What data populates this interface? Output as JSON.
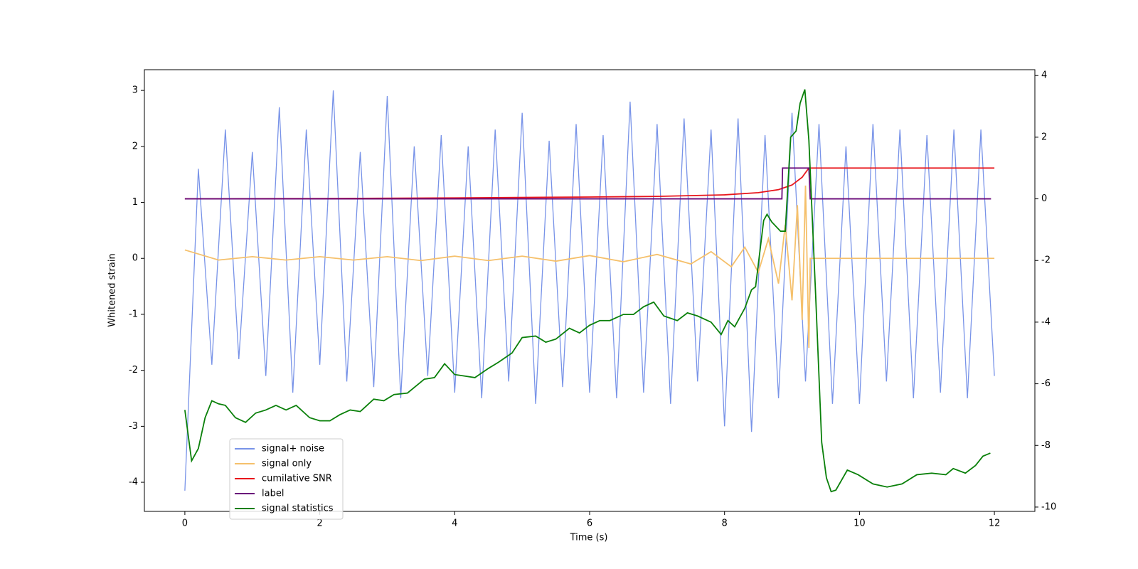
{
  "chart_data": {
    "type": "line",
    "xlabel": "Time (s)",
    "ylabel": "Whitened strain",
    "xlim": [
      -0.6,
      12.6
    ],
    "xticks": [
      0,
      2,
      4,
      6,
      8,
      10,
      12
    ],
    "ylim": [
      -4.52,
      3.37
    ],
    "yticks": [
      -4,
      -3,
      -2,
      -1,
      0,
      1,
      2,
      3
    ],
    "y2lim": [
      -10.14,
      4.19
    ],
    "y2ticks": [
      -10,
      -8,
      -6,
      -4,
      -2,
      0,
      2,
      4
    ],
    "legend": "lower left",
    "series": [
      {
        "name": "signal+ noise",
        "color": "#7893e8",
        "x": [
          0,
          0.2,
          0.4,
          0.6,
          0.8,
          1,
          1.2,
          1.4,
          1.6,
          1.8,
          2,
          2.2,
          2.4,
          2.6,
          2.8,
          3,
          3.2,
          3.4,
          3.6,
          3.8,
          4,
          4.2,
          4.4,
          4.6,
          4.8,
          5,
          5.2,
          5.4,
          5.6,
          5.8,
          6,
          6.2,
          6.4,
          6.6,
          6.8,
          7,
          7.2,
          7.4,
          7.6,
          7.8,
          8,
          8.2,
          8.4,
          8.6,
          8.8,
          9,
          9.2,
          9.4,
          9.6,
          9.8,
          10,
          10.2,
          10.4,
          10.6,
          10.8,
          11,
          11.2,
          11.4,
          11.6,
          11.8,
          12
        ],
        "values": [
          -4.15,
          1.6,
          -1.9,
          2.3,
          -1.8,
          1.9,
          -2.1,
          2.7,
          -2.4,
          2.3,
          -1.9,
          3.0,
          -2.2,
          1.9,
          -2.3,
          2.9,
          -2.5,
          2.0,
          -2.1,
          2.2,
          -2.4,
          2.0,
          -2.5,
          2.3,
          -2.2,
          2.6,
          -2.6,
          2.1,
          -2.3,
          2.4,
          -2.4,
          2.2,
          -2.5,
          2.8,
          -2.4,
          2.4,
          -2.6,
          2.5,
          -2.2,
          2.3,
          -3.0,
          2.5,
          -3.1,
          2.2,
          -2.5,
          2.6,
          -2.2,
          2.4,
          -2.6,
          2.0,
          -2.6,
          2.4,
          -2.2,
          2.3,
          -2.5,
          2.2,
          -2.4,
          2.3,
          -2.5,
          2.3,
          -2.1
        ]
      },
      {
        "name": "signal only",
        "color": "#f5c06b",
        "x": [
          0,
          0.5,
          1,
          1.5,
          2,
          2.5,
          3,
          3.5,
          4,
          4.5,
          5,
          5.5,
          6,
          6.5,
          7,
          7.5,
          7.8,
          8.1,
          8.3,
          8.5,
          8.65,
          8.8,
          8.9,
          9.0,
          9.08,
          9.15,
          9.2,
          9.25,
          9.27,
          12
        ],
        "values": [
          0.15,
          -0.03,
          0.03,
          -0.03,
          0.03,
          -0.03,
          0.03,
          -0.04,
          0.04,
          -0.04,
          0.04,
          -0.05,
          0.05,
          -0.06,
          0.07,
          -0.1,
          0.12,
          -0.15,
          0.2,
          -0.25,
          0.35,
          -0.45,
          0.6,
          -0.75,
          0.95,
          -1.1,
          1.3,
          -1.6,
          0,
          0
        ]
      },
      {
        "name": "cumilative SNR",
        "color": "#e8161c",
        "axis": "y2",
        "x": [
          0,
          2,
          4,
          6,
          7,
          8,
          8.5,
          8.8,
          9.0,
          9.15,
          9.25,
          12
        ],
        "values": [
          0,
          0.01,
          0.03,
          0.06,
          0.08,
          0.13,
          0.2,
          0.3,
          0.45,
          0.7,
          1,
          1
        ]
      },
      {
        "name": "label",
        "color": "#6a0a7a",
        "axis": "y2",
        "x": [
          0,
          8.85,
          8.86,
          9.25,
          9.27,
          11.95
        ],
        "values": [
          0,
          0,
          1,
          1,
          0,
          0
        ]
      },
      {
        "name": "signal statistics",
        "color": "#0a800a",
        "axis": "y2",
        "x": [
          0,
          0.1,
          0.2,
          0.3,
          0.4,
          0.5,
          0.6,
          0.75,
          0.9,
          1.05,
          1.2,
          1.35,
          1.5,
          1.65,
          1.85,
          2.0,
          2.15,
          2.3,
          2.45,
          2.6,
          2.8,
          2.95,
          3.1,
          3.3,
          3.55,
          3.7,
          3.85,
          4.0,
          4.15,
          4.3,
          4.5,
          4.65,
          4.85,
          5.0,
          5.2,
          5.35,
          5.5,
          5.7,
          5.85,
          6.0,
          6.15,
          6.3,
          6.5,
          6.65,
          6.8,
          6.95,
          7.1,
          7.3,
          7.45,
          7.6,
          7.8,
          7.95,
          8.05,
          8.15,
          8.3,
          8.4,
          8.46,
          8.58,
          8.63,
          8.7,
          8.83,
          8.9,
          8.98,
          9.06,
          9.12,
          9.19,
          9.25,
          9.35,
          9.44,
          9.51,
          9.58,
          9.65,
          9.82,
          9.98,
          10.2,
          10.41,
          10.63,
          10.85,
          11.07,
          11.28,
          11.39,
          11.57,
          11.72,
          11.83,
          11.94
        ],
        "values": [
          -6.85,
          -8.5,
          -8.1,
          -7.1,
          -6.55,
          -6.65,
          -6.7,
          -7.1,
          -7.25,
          -6.95,
          -6.85,
          -6.7,
          -6.85,
          -6.7,
          -7.1,
          -7.2,
          -7.2,
          -7.0,
          -6.85,
          -6.9,
          -6.5,
          -6.55,
          -6.35,
          -6.3,
          -5.85,
          -5.8,
          -5.35,
          -5.7,
          -5.75,
          -5.8,
          -5.5,
          -5.3,
          -5.0,
          -4.5,
          -4.45,
          -4.65,
          -4.55,
          -4.2,
          -4.35,
          -4.1,
          -3.95,
          -3.95,
          -3.75,
          -3.75,
          -3.5,
          -3.35,
          -3.8,
          -3.95,
          -3.7,
          -3.8,
          -4.0,
          -4.4,
          -3.95,
          -4.15,
          -3.55,
          -2.95,
          -2.85,
          -0.7,
          -0.5,
          -0.75,
          -1.05,
          -1.05,
          2.0,
          2.2,
          3.1,
          3.55,
          1.9,
          -3.1,
          -7.9,
          -9.05,
          -9.5,
          -9.45,
          -8.8,
          -8.95,
          -9.25,
          -9.35,
          -9.25,
          -8.95,
          -8.9,
          -8.95,
          -8.75,
          -8.9,
          -8.65,
          -8.35,
          -8.25
        ]
      }
    ]
  }
}
